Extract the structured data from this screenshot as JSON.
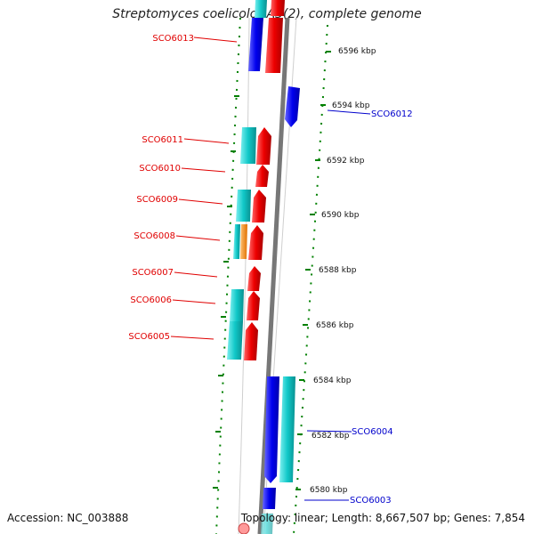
{
  "title": "Streptomyces coelicolor A3(2), complete genome",
  "footer": {
    "accession": "Accession: NC_003888",
    "summary": "Topology: linear; Length: 8,667,507 bp; Genes: 7,854"
  },
  "colors": {
    "forward_cds": "#ff1a1a",
    "reverse_cds": "#1a1aff",
    "cyan_feature": "#1fd0d0",
    "orange_feature": "#ff8c1a",
    "backbone": "#7a7a7a",
    "ruler_tick": "#008000",
    "left_label": "#e00000",
    "right_label": "#0000cc"
  },
  "ruler": {
    "unit": "kbp",
    "ticks": [
      "6596 kbp",
      "6594 kbp",
      "6592 kbp",
      "6590 kbp",
      "6588 kbp",
      "6586 kbp",
      "6584 kbp",
      "6582 kbp",
      "6580 kbp"
    ]
  },
  "left_labels": [
    "SCO6013",
    "SCO6011",
    "SCO6010",
    "SCO6009",
    "SCO6008",
    "SCO6007",
    "SCO6006",
    "SCO6005"
  ],
  "right_labels": [
    "SCO6012",
    "SCO6004",
    "SCO6003"
  ]
}
